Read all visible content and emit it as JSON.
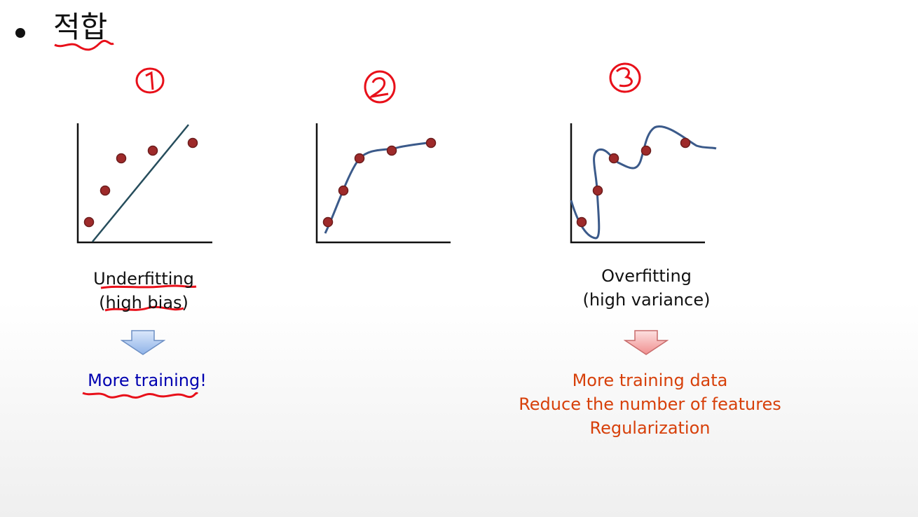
{
  "slide": {
    "title": "적합"
  },
  "panels": [
    {
      "number": "1",
      "caption_line1": "Underfitting",
      "caption_line2": "(high bias)",
      "remedy_lines": [
        "More training!"
      ],
      "arrow_color": "#a9c6ef"
    },
    {
      "number": "2",
      "caption_line1": "",
      "caption_line2": "",
      "remedy_lines": []
    },
    {
      "number": "3",
      "caption_line1": "Overfitting",
      "caption_line2": "(high variance)",
      "remedy_lines": [
        "More training data",
        "Reduce the number of features",
        "Regularization"
      ],
      "arrow_color": "#f3a9a9"
    }
  ],
  "colors": {
    "point_fill": "#9e2a2a",
    "curve": "#3b5a8a",
    "linear_fit": "#264d5c",
    "annotation_red": "#e8101a",
    "remedy_blue": "#0000b0",
    "remedy_orange": "#d7400a"
  }
}
